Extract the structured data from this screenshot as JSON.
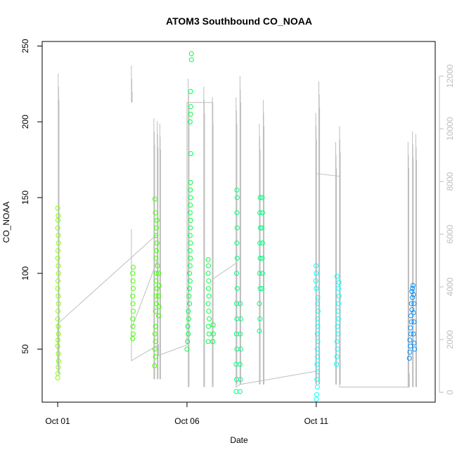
{
  "chart_data": {
    "type": "scatter",
    "title": "ATOM3 Southbound CO_NOAA",
    "xlabel": "Date",
    "ylabel": "CO_NOAA",
    "x_unit": "days (October)",
    "xlim": [
      0.4,
      15.6
    ],
    "ylim": [
      15,
      253
    ],
    "x_ticks": [
      {
        "value": 1,
        "label": "Oct 01"
      },
      {
        "value": 6,
        "label": "Oct 06"
      },
      {
        "value": 11,
        "label": "Oct 11"
      }
    ],
    "y_ticks": [
      50,
      100,
      150,
      200,
      250
    ],
    "y2_ticks": [
      0,
      2000,
      4000,
      6000,
      8000,
      10000,
      12000
    ],
    "y2_range": [
      0,
      13100
    ],
    "grid": false,
    "series": [
      {
        "color": "#80ff00",
        "points": [
          [
            1.0,
            31
          ],
          [
            1.01,
            34
          ],
          [
            1.02,
            38
          ],
          [
            1.03,
            42
          ],
          [
            1.02,
            47
          ],
          [
            1.0,
            52
          ],
          [
            1.01,
            56
          ],
          [
            1.03,
            60
          ],
          [
            1.02,
            65
          ],
          [
            1.0,
            70
          ],
          [
            1.01,
            75
          ],
          [
            1.03,
            80
          ],
          [
            1.02,
            85
          ],
          [
            1.0,
            90
          ],
          [
            1.01,
            95
          ],
          [
            1.03,
            100
          ],
          [
            1.02,
            105
          ],
          [
            1.0,
            110
          ],
          [
            1.01,
            115
          ],
          [
            1.03,
            120
          ],
          [
            1.02,
            125
          ],
          [
            1.0,
            130
          ],
          [
            1.01,
            135
          ],
          [
            1.02,
            138
          ],
          [
            1.0,
            143
          ]
        ]
      },
      {
        "color": "#40ff00",
        "points": [
          [
            3.9,
            57
          ],
          [
            3.92,
            60
          ],
          [
            3.91,
            65
          ],
          [
            3.9,
            70
          ],
          [
            3.92,
            75
          ],
          [
            3.91,
            80
          ],
          [
            3.9,
            85
          ],
          [
            3.92,
            90
          ],
          [
            3.91,
            95
          ],
          [
            3.9,
            100
          ],
          [
            3.92,
            104
          ],
          [
            4.75,
            39
          ],
          [
            4.78,
            45
          ],
          [
            4.76,
            50
          ],
          [
            4.78,
            55
          ],
          [
            4.76,
            60
          ],
          [
            4.78,
            65
          ],
          [
            4.78,
            75
          ],
          [
            4.82,
            80
          ],
          [
            4.8,
            85
          ],
          [
            4.84,
            90
          ],
          [
            4.8,
            95
          ],
          [
            4.82,
            100
          ],
          [
            4.86,
            105
          ],
          [
            4.8,
            110
          ],
          [
            4.82,
            115
          ],
          [
            4.84,
            120
          ],
          [
            4.8,
            125
          ],
          [
            4.82,
            130
          ],
          [
            4.84,
            135
          ],
          [
            4.78,
            140
          ],
          [
            4.76,
            149
          ],
          [
            4.9,
            72
          ],
          [
            4.92,
            78
          ],
          [
            4.9,
            85
          ],
          [
            4.92,
            92
          ],
          [
            4.9,
            100
          ]
        ]
      },
      {
        "color": "#00ff40",
        "points": [
          [
            6.0,
            50
          ],
          [
            6.02,
            55
          ],
          [
            6.05,
            60
          ],
          [
            6.03,
            65
          ],
          [
            6.07,
            70
          ],
          [
            6.05,
            75
          ],
          [
            6.1,
            80
          ],
          [
            6.08,
            85
          ],
          [
            6.1,
            90
          ],
          [
            6.12,
            95
          ],
          [
            6.1,
            100
          ],
          [
            6.12,
            105
          ],
          [
            6.13,
            110
          ],
          [
            6.12,
            115
          ],
          [
            6.14,
            120
          ],
          [
            6.12,
            125
          ],
          [
            6.13,
            130
          ],
          [
            6.14,
            135
          ],
          [
            6.12,
            140
          ],
          [
            6.13,
            145
          ],
          [
            6.14,
            150
          ],
          [
            6.13,
            155
          ],
          [
            6.14,
            160
          ],
          [
            6.15,
            179
          ],
          [
            6.12,
            200
          ],
          [
            6.14,
            205
          ],
          [
            6.15,
            210
          ],
          [
            6.14,
            220
          ],
          [
            6.17,
            241
          ],
          [
            6.17,
            245
          ],
          [
            6.82,
            55
          ],
          [
            6.85,
            60
          ],
          [
            6.83,
            65
          ],
          [
            6.86,
            70
          ],
          [
            6.84,
            75
          ],
          [
            6.82,
            80
          ],
          [
            6.85,
            85
          ],
          [
            6.83,
            90
          ],
          [
            6.84,
            95
          ],
          [
            6.82,
            100
          ],
          [
            6.83,
            105
          ],
          [
            6.82,
            109
          ],
          [
            7.0,
            55
          ],
          [
            7.02,
            60
          ],
          [
            7.01,
            66
          ]
        ]
      },
      {
        "color": "#00ff80",
        "points": [
          [
            7.9,
            22
          ],
          [
            7.92,
            30
          ],
          [
            7.9,
            40
          ],
          [
            7.93,
            50
          ],
          [
            7.91,
            60
          ],
          [
            7.93,
            70
          ],
          [
            7.92,
            80
          ],
          [
            7.94,
            90
          ],
          [
            7.92,
            100
          ],
          [
            7.94,
            110
          ],
          [
            7.93,
            120
          ],
          [
            7.94,
            130
          ],
          [
            7.93,
            140
          ],
          [
            7.94,
            150
          ],
          [
            7.93,
            155
          ],
          [
            8.05,
            22
          ],
          [
            8.07,
            30
          ],
          [
            8.05,
            40
          ],
          [
            8.08,
            50
          ],
          [
            8.06,
            60
          ],
          [
            8.08,
            70
          ],
          [
            8.06,
            80
          ],
          [
            8.8,
            62
          ],
          [
            8.82,
            70
          ],
          [
            8.8,
            80
          ],
          [
            8.83,
            90
          ],
          [
            8.81,
            100
          ],
          [
            8.83,
            110
          ],
          [
            8.82,
            120
          ],
          [
            8.84,
            130
          ],
          [
            8.82,
            140
          ],
          [
            8.83,
            150
          ],
          [
            8.9,
            90
          ],
          [
            8.92,
            100
          ],
          [
            8.91,
            110
          ],
          [
            8.92,
            120
          ],
          [
            8.9,
            130
          ],
          [
            8.92,
            140
          ],
          [
            8.91,
            150
          ]
        ]
      },
      {
        "color": "#00ffff",
        "points": [
          [
            11.0,
            17
          ],
          [
            11.02,
            20
          ],
          [
            11.04,
            25
          ],
          [
            11.02,
            30
          ],
          [
            11.05,
            35
          ],
          [
            11.03,
            40
          ],
          [
            11.05,
            45
          ],
          [
            11.04,
            50
          ],
          [
            11.06,
            55
          ],
          [
            11.04,
            60
          ],
          [
            11.06,
            65
          ],
          [
            11.05,
            70
          ],
          [
            11.07,
            75
          ],
          [
            11.05,
            80
          ],
          [
            11.06,
            84
          ],
          [
            11.0,
            90
          ],
          [
            10.98,
            95
          ],
          [
            11.0,
            100
          ],
          [
            10.99,
            105
          ],
          [
            11.78,
            40
          ],
          [
            11.8,
            45
          ],
          [
            11.82,
            50
          ],
          [
            11.8,
            55
          ],
          [
            11.84,
            60
          ],
          [
            11.82,
            65
          ],
          [
            11.86,
            70
          ],
          [
            11.84,
            75
          ],
          [
            11.86,
            80
          ],
          [
            11.88,
            85
          ],
          [
            11.86,
            90
          ],
          [
            11.88,
            94
          ],
          [
            11.8,
            98
          ]
        ]
      },
      {
        "color": "#0090ff",
        "points": [
          [
            14.6,
            44
          ],
          [
            14.62,
            48
          ],
          [
            14.64,
            52
          ],
          [
            14.62,
            56
          ],
          [
            14.66,
            60
          ],
          [
            14.64,
            64
          ],
          [
            14.68,
            68
          ],
          [
            14.66,
            72
          ],
          [
            14.7,
            76
          ],
          [
            14.68,
            80
          ],
          [
            14.72,
            84
          ],
          [
            14.7,
            88
          ],
          [
            14.74,
            92
          ],
          [
            14.72,
            90
          ],
          [
            14.76,
            86
          ],
          [
            14.78,
            80
          ],
          [
            14.76,
            74
          ],
          [
            14.78,
            68
          ],
          [
            14.76,
            60
          ],
          [
            14.78,
            54
          ],
          [
            14.8,
            50
          ]
        ]
      }
    ],
    "altitude_spikes": [
      [
        1.02,
        700,
        12100
      ],
      [
        3.85,
        11000,
        12400
      ],
      [
        4.72,
        500,
        10400
      ],
      [
        4.85,
        500,
        10300
      ],
      [
        4.95,
        500,
        10200
      ],
      [
        6.05,
        200,
        11900
      ],
      [
        6.65,
        200,
        11600
      ],
      [
        6.98,
        200,
        11200
      ],
      [
        7.9,
        300,
        11200
      ],
      [
        8.05,
        300,
        12000
      ],
      [
        8.8,
        300,
        10200
      ],
      [
        8.95,
        300,
        11100
      ],
      [
        10.98,
        300,
        10600
      ],
      [
        11.1,
        300,
        11800
      ],
      [
        11.75,
        300,
        9500
      ],
      [
        11.9,
        300,
        10100
      ],
      [
        14.55,
        200,
        9500
      ],
      [
        14.72,
        200,
        9900
      ],
      [
        14.85,
        200,
        9800
      ]
    ],
    "altitude_path": [
      [
        1.0,
        1000
      ],
      [
        1.0,
        2600
      ],
      [
        4.85,
        6000
      ],
      [
        4.85,
        5000
      ],
      [
        3.85,
        2400
      ],
      [
        3.85,
        6200
      ],
      [
        3.85,
        1200
      ],
      [
        4.9,
        1800
      ],
      [
        4.9,
        1400
      ],
      [
        6.0,
        1800
      ],
      [
        6.0,
        11000
      ],
      [
        7.0,
        11000
      ],
      [
        7.0,
        4300
      ],
      [
        7.9,
        4900
      ],
      [
        7.9,
        200
      ],
      [
        8.05,
        300
      ],
      [
        11.0,
        800
      ],
      [
        11.0,
        8300
      ],
      [
        11.9,
        8200
      ],
      [
        11.9,
        200
      ],
      [
        14.6,
        200
      ],
      [
        14.6,
        700
      ]
    ]
  }
}
